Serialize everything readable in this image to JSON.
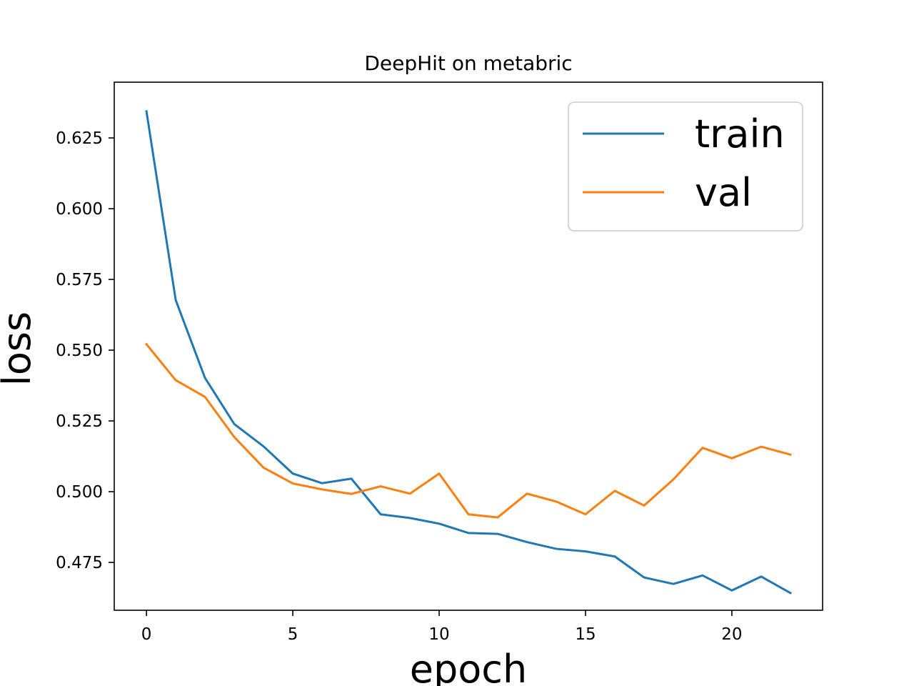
{
  "chart_data": {
    "type": "line",
    "title": "DeepHit on metabric",
    "xlabel": "epoch",
    "ylabel": "loss",
    "xlim": [
      -1.1,
      23.1
    ],
    "ylim": [
      0.4581,
      0.6447
    ],
    "xticks": [
      0,
      5,
      10,
      15,
      20
    ],
    "xtick_labels": [
      "0",
      "5",
      "10",
      "15",
      "20"
    ],
    "yticks": [
      0.475,
      0.5,
      0.525,
      0.55,
      0.575,
      0.6,
      0.625
    ],
    "ytick_labels": [
      "0.475",
      "0.500",
      "0.525",
      "0.550",
      "0.575",
      "0.600",
      "0.625"
    ],
    "grid": false,
    "legend_position": "top-right",
    "x": [
      0,
      1,
      2,
      3,
      4,
      5,
      6,
      7,
      8,
      9,
      10,
      11,
      12,
      13,
      14,
      15,
      16,
      17,
      18,
      19,
      20,
      21,
      22
    ],
    "series": [
      {
        "name": "train",
        "color": "#1f77b4",
        "values": [
          0.6344,
          0.5677,
          0.5402,
          0.5239,
          0.516,
          0.5064,
          0.503,
          0.5046,
          0.492,
          0.4907,
          0.4887,
          0.4854,
          0.4851,
          0.4822,
          0.4798,
          0.4789,
          0.4771,
          0.4697,
          0.4674,
          0.4704,
          0.4651,
          0.47,
          0.4642
        ]
      },
      {
        "name": "val",
        "color": "#ff7f0e",
        "values": [
          0.5521,
          0.5394,
          0.5335,
          0.5193,
          0.5085,
          0.5029,
          0.5008,
          0.4992,
          0.5019,
          0.4993,
          0.5064,
          0.492,
          0.4909,
          0.4993,
          0.4965,
          0.492,
          0.5003,
          0.4951,
          0.5043,
          0.5155,
          0.5118,
          0.5159,
          0.5131
        ]
      }
    ]
  }
}
